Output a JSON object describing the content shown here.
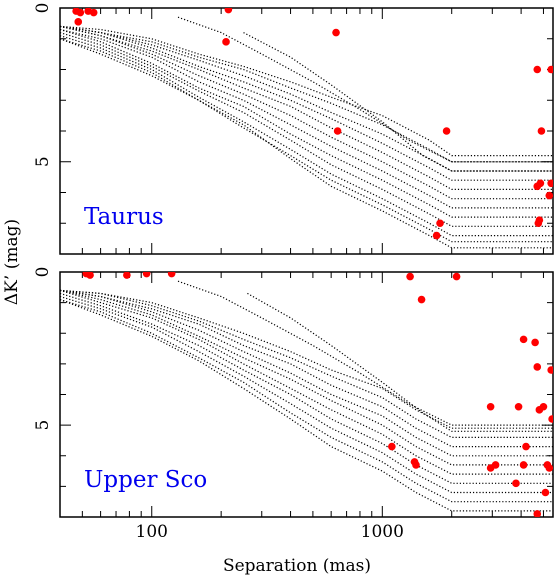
{
  "chart_data": {
    "type": "line",
    "xlabel": "Separation (mas)",
    "ylabel": "ΔK’ (mag)",
    "x_scale": "log",
    "xlim": [
      40,
      5500
    ],
    "x_ticks": [
      100,
      1000
    ],
    "x_tick_labels": [
      "100",
      "1000"
    ],
    "colors": {
      "curves": "#000000",
      "detections": "#ff0000",
      "label": "#0000ee"
    },
    "panels": [
      {
        "label": "Taurus",
        "ylim": [
          8,
          0
        ],
        "y_ticks": [
          0,
          5
        ],
        "y_tick_labels": [
          "0",
          "5"
        ],
        "curve_style": "dotted",
        "curves": [
          {
            "x": [
              40,
              60,
              100,
              160,
              250,
              400,
              600,
              1000,
              1600,
              2000,
              5500
            ],
            "y": [
              0.9,
              1.3,
              2.0,
              2.9,
              3.7,
              4.6,
              5.4,
              6.2,
              7.0,
              7.4,
              7.4
            ]
          },
          {
            "x": [
              40,
              60,
              100,
              160,
              250,
              400,
              600,
              1000,
              1600,
              2000,
              5500
            ],
            "y": [
              0.8,
              1.2,
              1.9,
              2.7,
              3.4,
              4.3,
              5.1,
              5.9,
              6.7,
              7.1,
              7.1
            ]
          },
          {
            "x": [
              40,
              60,
              100,
              160,
              250,
              400,
              600,
              1000,
              1600,
              2000,
              5500
            ],
            "y": [
              0.7,
              1.1,
              1.8,
              2.6,
              3.2,
              4.1,
              4.8,
              5.6,
              6.4,
              6.8,
              6.8
            ]
          },
          {
            "x": [
              40,
              60,
              100,
              160,
              250,
              400,
              600,
              1000,
              1600,
              2000,
              5500
            ],
            "y": [
              0.7,
              1.0,
              1.6,
              2.4,
              3.0,
              3.8,
              4.5,
              5.3,
              6.1,
              6.5,
              6.5
            ]
          },
          {
            "x": [
              40,
              60,
              100,
              160,
              250,
              400,
              600,
              1000,
              1600,
              2000,
              5500
            ],
            "y": [
              0.6,
              0.9,
              1.5,
              2.2,
              2.8,
              3.5,
              4.2,
              5.0,
              5.8,
              6.2,
              6.2
            ]
          },
          {
            "x": [
              40,
              60,
              100,
              160,
              250,
              400,
              600,
              1000,
              1600,
              2000,
              5500
            ],
            "y": [
              0.6,
              0.9,
              1.4,
              2.0,
              2.6,
              3.2,
              3.9,
              4.7,
              5.5,
              5.9,
              5.9
            ]
          },
          {
            "x": [
              40,
              60,
              100,
              160,
              250,
              400,
              600,
              1000,
              1600,
              2000,
              5500
            ],
            "y": [
              0.6,
              0.8,
              1.3,
              1.9,
              2.4,
              3.0,
              3.6,
              4.4,
              5.2,
              5.6,
              5.6
            ]
          },
          {
            "x": [
              40,
              60,
              100,
              160,
              250,
              400,
              600,
              1000,
              1600,
              2000,
              5500
            ],
            "y": [
              0.6,
              0.8,
              1.2,
              1.7,
              2.2,
              2.8,
              3.4,
              4.1,
              4.9,
              5.3,
              5.3
            ]
          },
          {
            "x": [
              40,
              60,
              100,
              160,
              250,
              400,
              600,
              1000,
              1600,
              2000,
              5500
            ],
            "y": [
              0.6,
              0.8,
              1.1,
              1.6,
              2.0,
              2.6,
              3.1,
              3.8,
              4.6,
              5.0,
              5.0
            ]
          },
          {
            "x": [
              40,
              60,
              100,
              160,
              250,
              400,
              600,
              1000,
              1600,
              2000,
              5500
            ],
            "y": [
              0.6,
              0.7,
              1.0,
              1.5,
              1.9,
              2.4,
              2.9,
              3.5,
              4.3,
              4.8,
              4.8
            ]
          },
          {
            "x": [
              130,
              200,
              300,
              500,
              800,
              1300,
              2000,
              5500
            ],
            "y": [
              0.3,
              0.8,
              1.5,
              2.4,
              3.3,
              4.3,
              5.0,
              5.0
            ]
          },
          {
            "x": [
              250,
              400,
              600,
              1000,
              1500,
              2000,
              5500
            ],
            "y": [
              0.8,
              1.6,
              2.5,
              3.7,
              4.8,
              5.3,
              5.3
            ]
          },
          {
            "x": [
              40,
              60,
              100,
              160,
              250,
              400,
              600,
              1000,
              1600,
              2000,
              5500
            ],
            "y": [
              1.0,
              1.5,
              2.2,
              3.0,
              3.9,
              4.8,
              5.6,
              6.4,
              7.2,
              7.6,
              7.6
            ]
          },
          {
            "x": [
              40,
              60,
              100,
              160,
              250,
              400,
              600,
              1000,
              1600,
              2000,
              5500
            ],
            "y": [
              1.0,
              1.4,
              2.1,
              3.0,
              3.8,
              4.9,
              5.8,
              6.6,
              7.4,
              7.8,
              7.8
            ]
          }
        ],
        "points": {
          "x": [
            47,
            49,
            53,
            56,
            48,
            215,
            210,
            630,
            640,
            1780,
            1720,
            1900,
            4700,
            5400,
            4900,
            4850,
            4700,
            4750,
            4800,
            5300,
            5400
          ],
          "y": [
            0.1,
            0.15,
            0.1,
            0.15,
            0.45,
            0.05,
            1.1,
            0.8,
            4.0,
            7.0,
            7.4,
            4.0,
            2.0,
            2.0,
            4.0,
            5.7,
            5.8,
            7.0,
            6.9,
            6.1,
            5.7
          ]
        }
      },
      {
        "label": "Upper Sco",
        "ylim": [
          8,
          0
        ],
        "y_ticks": [
          0,
          5
        ],
        "y_tick_labels": [
          "0",
          "5"
        ],
        "curve_style": "dotted",
        "curves": [
          {
            "x": [
              40,
              60,
              100,
              160,
              250,
              400,
              600,
              1000,
              1400,
              2000,
              5500
            ],
            "y": [
              0.8,
              1.2,
              1.8,
              2.6,
              3.4,
              4.3,
              5.1,
              5.9,
              6.6,
              7.2,
              7.2
            ]
          },
          {
            "x": [
              40,
              60,
              100,
              160,
              250,
              400,
              600,
              1000,
              1400,
              2000,
              5500
            ],
            "y": [
              0.7,
              1.1,
              1.7,
              2.4,
              3.2,
              4.0,
              4.8,
              5.6,
              6.3,
              6.9,
              6.9
            ]
          },
          {
            "x": [
              40,
              60,
              100,
              160,
              250,
              400,
              600,
              1000,
              1400,
              2000,
              5500
            ],
            "y": [
              0.6,
              1.0,
              1.5,
              2.2,
              3.0,
              3.8,
              4.5,
              5.3,
              6.0,
              6.6,
              6.6
            ]
          },
          {
            "x": [
              40,
              60,
              100,
              160,
              250,
              400,
              600,
              1000,
              1400,
              2000,
              5500
            ],
            "y": [
              0.6,
              0.9,
              1.4,
              2.1,
              2.8,
              3.5,
              4.2,
              5.0,
              5.7,
              6.3,
              6.3
            ]
          },
          {
            "x": [
              40,
              60,
              100,
              160,
              250,
              400,
              600,
              1000,
              1400,
              2000,
              5500
            ],
            "y": [
              0.6,
              0.8,
              1.3,
              1.9,
              2.6,
              3.3,
              4.0,
              4.7,
              5.4,
              6.0,
              6.0
            ]
          },
          {
            "x": [
              40,
              60,
              100,
              160,
              250,
              400,
              600,
              1000,
              1400,
              2000,
              5500
            ],
            "y": [
              0.6,
              0.8,
              1.2,
              1.7,
              2.4,
              3.0,
              3.7,
              4.4,
              5.1,
              5.7,
              5.7
            ]
          },
          {
            "x": [
              40,
              60,
              100,
              160,
              250,
              400,
              600,
              1000,
              1400,
              2000,
              5500
            ],
            "y": [
              0.6,
              0.7,
              1.1,
              1.6,
              2.2,
              2.8,
              3.4,
              4.1,
              4.8,
              5.4,
              5.4
            ]
          },
          {
            "x": [
              40,
              60,
              100,
              160,
              250,
              400,
              600,
              1000,
              1400,
              2000,
              5500
            ],
            "y": [
              0.6,
              0.7,
              1.0,
              1.5,
              2.0,
              2.6,
              3.2,
              3.8,
              4.5,
              5.1,
              5.1
            ]
          },
          {
            "x": [
              130,
              200,
              300,
              500,
              800,
              1300,
              2000,
              5500
            ],
            "y": [
              0.3,
              0.8,
              1.5,
              2.4,
              3.3,
              4.3,
              5.0,
              5.0
            ]
          },
          {
            "x": [
              260,
              400,
              600,
              1000,
              1500,
              2000,
              5500
            ],
            "y": [
              0.7,
              1.5,
              2.4,
              3.6,
              4.6,
              5.2,
              5.2
            ]
          },
          {
            "x": [
              40,
              60,
              100,
              160,
              250,
              400,
              600,
              1000,
              1400,
              2000,
              5500
            ],
            "y": [
              0.9,
              1.3,
              2.0,
              2.8,
              3.6,
              4.6,
              5.4,
              6.2,
              6.9,
              7.5,
              7.5
            ]
          },
          {
            "x": [
              40,
              60,
              100,
              160,
              250,
              400,
              600,
              1000,
              1400,
              2000,
              5500
            ],
            "y": [
              0.9,
              1.4,
              2.1,
              2.9,
              3.8,
              4.8,
              5.7,
              6.5,
              7.2,
              7.8,
              7.8
            ]
          }
        ],
        "points": {
          "x": [
            52,
            54,
            78,
            95,
            122,
            1320,
            1480,
            2100,
            1100,
            1380,
            1400,
            2950,
            2950,
            3100,
            3800,
            3900,
            4100,
            4200,
            4100,
            4600,
            4700,
            4800,
            5000,
            5200,
            5300,
            5400,
            5450,
            5100,
            4700
          ],
          "y": [
            0.05,
            0.1,
            0.1,
            0.05,
            0.05,
            0.15,
            0.9,
            0.15,
            5.7,
            6.2,
            6.3,
            4.4,
            6.4,
            6.3,
            6.9,
            4.4,
            6.3,
            5.7,
            2.2,
            2.3,
            3.1,
            4.5,
            4.4,
            6.3,
            6.4,
            3.2,
            4.8,
            7.2,
            7.9
          ]
        }
      }
    ]
  }
}
